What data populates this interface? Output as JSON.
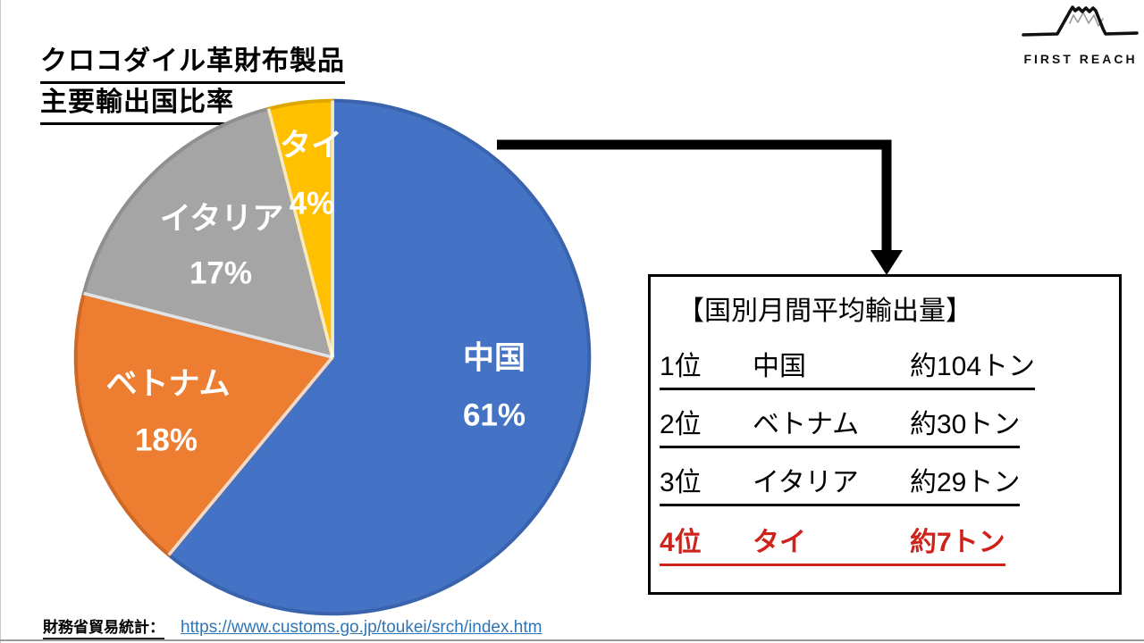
{
  "title": {
    "line1": "クロコダイル革財布製品",
    "line2": "主要輸出国比率"
  },
  "logo": {
    "text": "FIRST REACH"
  },
  "chart_data": {
    "type": "pie",
    "title": "クロコダイル革財布製品 主要輸出国比率",
    "start_angle_deg": 0,
    "direction": "clockwise",
    "legend": "none",
    "labels_format": "category name + percent, inside slices, white bold",
    "slices": [
      {
        "label": "中国",
        "value_pct": 61,
        "pct_label": "61%",
        "color": "#4472C4",
        "edge": "#3A63AD"
      },
      {
        "label": "ベトナム",
        "value_pct": 18,
        "pct_label": "18%",
        "color": "#ED7D31",
        "edge": "#CF6A26"
      },
      {
        "label": "イタリア",
        "value_pct": 17,
        "pct_label": "17%",
        "color": "#A5A5A5",
        "edge": "#8F8F8F"
      },
      {
        "label": "タイ",
        "value_pct": 4,
        "pct_label": "4%",
        "color": "#FFC000",
        "edge": "#DFA700"
      }
    ]
  },
  "callout": {
    "heading": "【国別月間平均輸出量】",
    "highlight_color": "#CE231B",
    "rows": [
      {
        "rank": "1位",
        "country": "中国",
        "amount": "約104トン",
        "highlight": false
      },
      {
        "rank": "2位",
        "country": "ベトナム",
        "amount": "約30トン",
        "highlight": false
      },
      {
        "rank": "3位",
        "country": "イタリア",
        "amount": "約29トン",
        "highlight": false
      },
      {
        "rank": "4位",
        "country": "タイ",
        "amount": "約7トン",
        "highlight": true
      }
    ]
  },
  "source": {
    "label": "財務省貿易統計：",
    "url_text": "https://www.customs.go.jp/toukei/srch/index.htm",
    "link_color": "#2E75B6"
  }
}
